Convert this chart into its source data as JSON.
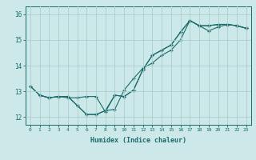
{
  "xlabel": "Humidex (Indice chaleur)",
  "bg_color": "#cce8e8",
  "grid_color": "#aacece",
  "line_color": "#1a6b6b",
  "xlim": [
    -0.5,
    23.5
  ],
  "ylim": [
    11.7,
    16.3
  ],
  "xticks": [
    0,
    1,
    2,
    3,
    4,
    5,
    6,
    7,
    8,
    9,
    10,
    11,
    12,
    13,
    14,
    15,
    16,
    17,
    18,
    19,
    20,
    21,
    22,
    23
  ],
  "yticks": [
    12,
    13,
    14,
    15,
    16
  ],
  "line1_x": [
    0,
    1,
    2,
    3,
    4,
    5,
    6,
    7,
    8,
    9,
    10,
    11,
    12,
    13,
    14,
    15,
    16,
    17,
    18,
    19,
    20,
    21,
    22,
    23
  ],
  "line1_y": [
    13.2,
    12.85,
    12.75,
    12.8,
    12.8,
    12.45,
    12.1,
    12.1,
    12.25,
    12.85,
    12.8,
    13.05,
    13.85,
    14.4,
    14.6,
    14.8,
    15.3,
    15.75,
    15.55,
    15.55,
    15.6,
    15.6,
    15.55,
    15.45
  ],
  "line2_x": [
    0,
    1,
    2,
    3,
    4,
    5,
    6,
    7,
    8,
    9,
    10,
    11,
    12,
    13,
    14,
    15,
    16,
    17,
    18,
    19,
    20,
    21,
    22,
    23
  ],
  "line2_y": [
    13.2,
    12.85,
    12.75,
    12.8,
    12.8,
    12.45,
    12.1,
    12.1,
    12.25,
    12.3,
    13.05,
    13.5,
    13.9,
    14.1,
    14.4,
    14.6,
    15.0,
    15.75,
    15.55,
    15.35,
    15.5,
    15.6,
    15.55,
    15.45
  ],
  "line3_x": [
    1,
    2,
    3,
    4,
    5,
    6,
    7,
    8,
    9,
    10,
    11,
    12,
    13,
    14,
    15,
    16,
    17,
    18,
    19,
    20,
    21,
    22,
    23
  ],
  "line3_y": [
    12.85,
    12.75,
    12.8,
    12.75,
    12.75,
    12.8,
    12.8,
    12.2,
    12.85,
    12.8,
    13.05,
    13.85,
    14.4,
    14.6,
    14.8,
    15.3,
    15.75,
    15.55,
    15.55,
    15.6,
    15.6,
    15.55,
    15.45
  ]
}
